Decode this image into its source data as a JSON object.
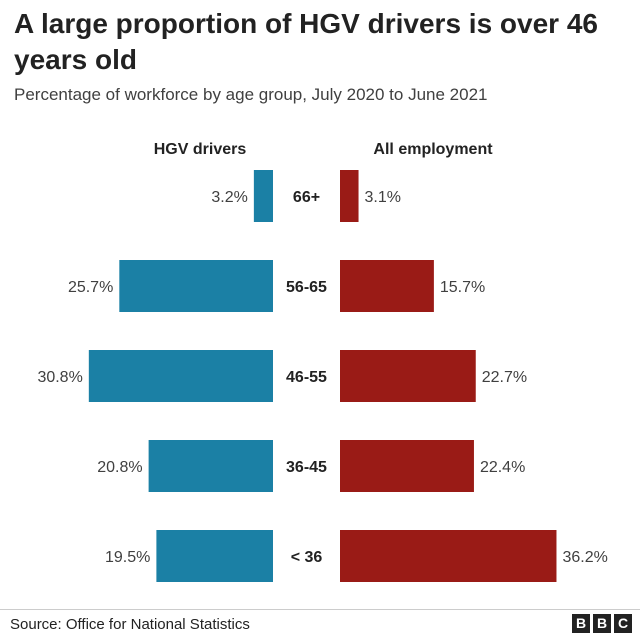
{
  "title": "A large proportion of HGV drivers is over 46 years old",
  "subtitle": "Percentage of workforce by age group, July 2020 to June 2021",
  "source": "Source: Office for National Statistics",
  "logo": [
    "B",
    "B",
    "C"
  ],
  "colors": {
    "left": "#1b80a5",
    "right": "#9a1b16"
  },
  "chart_data": {
    "type": "bar",
    "orientation": "horizontal-butterfly",
    "categories": [
      "66+",
      "56-65",
      "46-55",
      "36-45",
      "< 36"
    ],
    "series": [
      {
        "name": "HGV drivers",
        "values": [
          3.2,
          25.7,
          30.8,
          20.8,
          19.5
        ],
        "labels": [
          "3.2%",
          "25.7%",
          "30.8%",
          "20.8%",
          "19.5%"
        ]
      },
      {
        "name": "All employment",
        "values": [
          3.1,
          15.7,
          22.7,
          22.4,
          36.2
        ],
        "labels": [
          "3.1%",
          "15.7%",
          "22.7%",
          "22.4%",
          "36.2%"
        ]
      }
    ],
    "unit": "%",
    "grid": false
  }
}
